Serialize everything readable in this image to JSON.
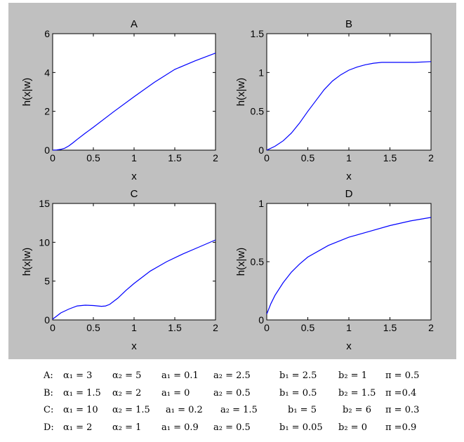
{
  "chart_data": [
    {
      "id": "A",
      "type": "line",
      "title": "A",
      "xlabel": "x",
      "ylabel": "h(x|w)",
      "xlim": [
        0,
        2
      ],
      "ylim": [
        0,
        6
      ],
      "xticks": [
        "0",
        "0.5",
        "1",
        "1.5",
        "2"
      ],
      "yticks": [
        "0",
        "2",
        "4",
        "6"
      ],
      "xticks_values": [
        0,
        0.5,
        1,
        1.5,
        2
      ],
      "yticks_values": [
        0,
        2,
        4,
        6
      ],
      "series": [
        {
          "color": "#0000ff",
          "x": [
            0,
            0.05,
            0.1,
            0.15,
            0.2,
            0.25,
            0.3,
            0.4,
            0.5,
            0.75,
            1.0,
            1.25,
            1.5,
            1.75,
            2.0
          ],
          "y": [
            0,
            0.01,
            0.04,
            0.1,
            0.22,
            0.38,
            0.55,
            0.87,
            1.18,
            1.98,
            2.75,
            3.5,
            4.16,
            4.6,
            5.0
          ]
        }
      ],
      "grid": false
    },
    {
      "id": "B",
      "type": "line",
      "title": "B",
      "xlabel": "x",
      "ylabel": "h(x|w)",
      "xlim": [
        0,
        2
      ],
      "ylim": [
        0,
        1.5
      ],
      "xticks": [
        "0",
        "0.5",
        "1",
        "1.5",
        "2"
      ],
      "yticks": [
        "0",
        "0.5",
        "1",
        "1.5"
      ],
      "xticks_values": [
        0,
        0.5,
        1,
        1.5,
        2
      ],
      "yticks_values": [
        0,
        0.5,
        1,
        1.5
      ],
      "series": [
        {
          "color": "#0000ff",
          "x": [
            0,
            0.1,
            0.2,
            0.3,
            0.4,
            0.5,
            0.6,
            0.7,
            0.8,
            0.9,
            1.0,
            1.1,
            1.2,
            1.3,
            1.4,
            1.5,
            1.6,
            1.8,
            2.0
          ],
          "y": [
            0,
            0.05,
            0.12,
            0.22,
            0.35,
            0.5,
            0.64,
            0.78,
            0.89,
            0.97,
            1.03,
            1.07,
            1.1,
            1.12,
            1.13,
            1.13,
            1.13,
            1.13,
            1.14
          ]
        }
      ],
      "grid": false
    },
    {
      "id": "C",
      "type": "line",
      "title": "C",
      "xlabel": "x",
      "ylabel": "h(x|w)",
      "xlim": [
        0,
        2
      ],
      "ylim": [
        0,
        15
      ],
      "xticks": [
        "0",
        "0.5",
        "1",
        "1.5",
        "2"
      ],
      "yticks": [
        "0",
        "5",
        "10",
        "15"
      ],
      "xticks_values": [
        0,
        0.5,
        1,
        1.5,
        2
      ],
      "yticks_values": [
        0,
        5,
        10,
        15
      ],
      "series": [
        {
          "color": "#0000ff",
          "x": [
            0,
            0.05,
            0.1,
            0.2,
            0.3,
            0.4,
            0.5,
            0.6,
            0.65,
            0.7,
            0.8,
            0.9,
            1.0,
            1.2,
            1.4,
            1.6,
            1.8,
            2.0
          ],
          "y": [
            0.1,
            0.5,
            0.9,
            1.4,
            1.8,
            1.9,
            1.85,
            1.75,
            1.8,
            2.0,
            2.8,
            3.8,
            4.7,
            6.3,
            7.5,
            8.5,
            9.4,
            10.3
          ]
        }
      ],
      "grid": false
    },
    {
      "id": "D",
      "type": "line",
      "title": "D",
      "xlabel": "x",
      "ylabel": "h(x|w)",
      "xlim": [
        0,
        2
      ],
      "ylim": [
        0,
        1
      ],
      "xticks": [
        "0",
        "0.5",
        "1",
        "1.5",
        "2"
      ],
      "yticks": [
        "0",
        "0.5",
        "1"
      ],
      "xticks_values": [
        0,
        0.5,
        1,
        1.5,
        2
      ],
      "yticks_values": [
        0,
        0.5,
        1
      ],
      "series": [
        {
          "color": "#0000ff",
          "x": [
            0,
            0.05,
            0.1,
            0.2,
            0.3,
            0.4,
            0.5,
            0.75,
            1.0,
            1.25,
            1.5,
            1.75,
            2.0
          ],
          "y": [
            0.05,
            0.14,
            0.21,
            0.32,
            0.41,
            0.48,
            0.54,
            0.64,
            0.71,
            0.76,
            0.81,
            0.85,
            0.88
          ]
        }
      ],
      "grid": false
    }
  ],
  "params": [
    {
      "label": "A:",
      "alpha1": "α₁ = 3",
      "alpha2": "α₂ = 5",
      "a1": "a₁ = 0.1",
      "a2": "a₂ = 2.5",
      "b1": "b₁ = 2.5",
      "b2": "b₂ = 1",
      "pi": "π = 0.5"
    },
    {
      "label": "B:",
      "alpha1": "α₁ = 1.5",
      "alpha2": "α₂ = 2",
      "a1": "a₁ = 0",
      "a2": "a₂ = 0.5",
      "b1": "b₁ = 0.5",
      "b2": "b₂ = 1.5",
      "pi": "π =0.4"
    },
    {
      "label": "C:",
      "alpha1": "α₁ = 10",
      "alpha2": "α₂ = 1.5",
      "a1": "a₁ = 0.2",
      "a2": "a₂ = 1.5",
      "b1": "b₁ = 5",
      "b2": "b₂ = 6",
      "pi": "π = 0.3"
    },
    {
      "label": "D:",
      "alpha1": "α₁ = 2",
      "alpha2": "α₂ = 1",
      "a1": "a₁ = 0.9",
      "a2": "a₂ = 0.5",
      "b1": "b₁ = 0.05",
      "b2": "b₂ = 0",
      "pi": "π =0.9"
    }
  ]
}
